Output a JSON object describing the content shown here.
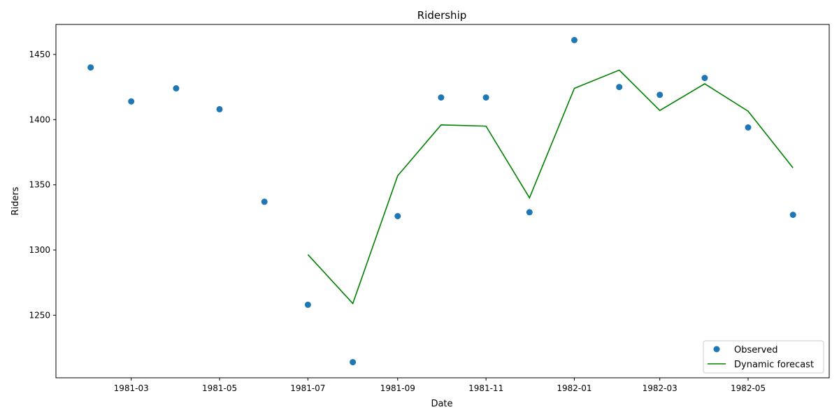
{
  "chart_data": {
    "type": "line",
    "title": "Ridership",
    "xlabel": "Date",
    "ylabel": "Riders",
    "x_ticks": [
      "1981-03",
      "1981-05",
      "1981-07",
      "1981-09",
      "1981-11",
      "1982-01",
      "1982-03",
      "1982-05"
    ],
    "y_ticks": [
      1250,
      1300,
      1350,
      1400,
      1450
    ],
    "xlim": [
      "1981-01-08",
      "1982-06-26"
    ],
    "ylim": [
      1202,
      1473
    ],
    "grid": false,
    "legend_position": "lower right",
    "series": [
      {
        "name": "Observed",
        "style": "markers",
        "color": "#1f77b4",
        "points": [
          {
            "x": "1981-02-01",
            "y": 1440
          },
          {
            "x": "1981-03-01",
            "y": 1414
          },
          {
            "x": "1981-04-01",
            "y": 1424
          },
          {
            "x": "1981-05-01",
            "y": 1408
          },
          {
            "x": "1981-06-01",
            "y": 1337
          },
          {
            "x": "1981-07-01",
            "y": 1258
          },
          {
            "x": "1981-08-01",
            "y": 1214
          },
          {
            "x": "1981-09-01",
            "y": 1326
          },
          {
            "x": "1981-10-01",
            "y": 1417
          },
          {
            "x": "1981-11-01",
            "y": 1417
          },
          {
            "x": "1981-12-01",
            "y": 1329
          },
          {
            "x": "1982-01-01",
            "y": 1461
          },
          {
            "x": "1982-02-01",
            "y": 1425
          },
          {
            "x": "1982-03-01",
            "y": 1419
          },
          {
            "x": "1982-04-01",
            "y": 1432
          },
          {
            "x": "1982-05-01",
            "y": 1394
          },
          {
            "x": "1982-06-01",
            "y": 1327
          }
        ]
      },
      {
        "name": "Dynamic forecast",
        "style": "line",
        "color": "#008000",
        "points": [
          {
            "x": "1981-07-01",
            "y": 1296.5
          },
          {
            "x": "1981-08-01",
            "y": 1259
          },
          {
            "x": "1981-09-01",
            "y": 1357
          },
          {
            "x": "1981-10-01",
            "y": 1396
          },
          {
            "x": "1981-11-01",
            "y": 1395
          },
          {
            "x": "1981-12-01",
            "y": 1340
          },
          {
            "x": "1982-01-01",
            "y": 1424
          },
          {
            "x": "1982-02-01",
            "y": 1438
          },
          {
            "x": "1982-03-01",
            "y": 1407
          },
          {
            "x": "1982-04-01",
            "y": 1427.5
          },
          {
            "x": "1982-05-01",
            "y": 1406.5
          },
          {
            "x": "1982-06-01",
            "y": 1363
          }
        ]
      }
    ]
  }
}
